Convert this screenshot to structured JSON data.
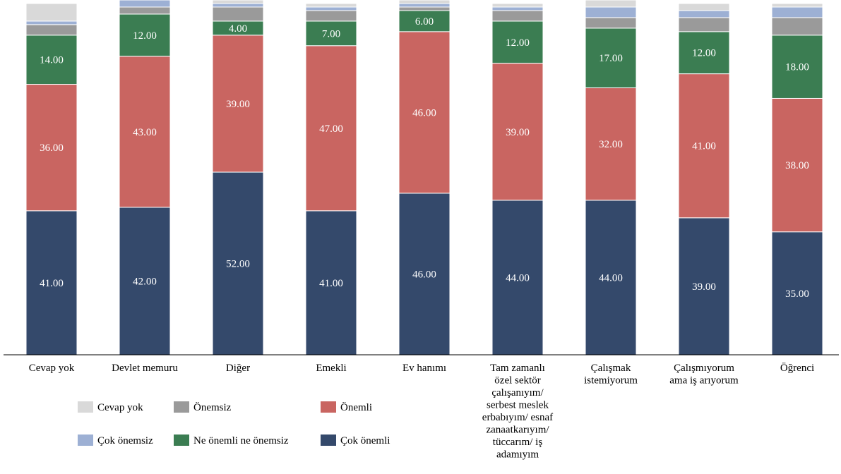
{
  "chart_data": {
    "type": "bar",
    "stacked": true,
    "ylim": [
      0,
      100
    ],
    "grid": false,
    "legend_position": "bottom-left",
    "categories": [
      [
        "Cevap yok"
      ],
      [
        "Devlet memuru"
      ],
      [
        "Diğer"
      ],
      [
        "Emekli"
      ],
      [
        "Ev hanımı"
      ],
      [
        "Tam zamanlı",
        "özel sektör",
        "çalışanıyım/",
        "serbest meslek",
        "erbabıyım/ esnaf",
        "zanaatkarıyım/",
        "tüccarım/ iş",
        "adamıyım"
      ],
      [
        "Çalışmak",
        "istemiyorum"
      ],
      [
        "Çalışmıyorum",
        "ama iş arıyorum"
      ],
      [
        "Öğrenci"
      ]
    ],
    "series": [
      {
        "name": "Çok önemli",
        "color": "#34496b",
        "values": [
          41,
          42,
          52,
          41,
          46,
          44,
          44,
          39,
          35
        ],
        "labels": [
          "41.00",
          "42.00",
          "52.00",
          "41.00",
          "46.00",
          "44.00",
          "44.00",
          "39.00",
          "35.00"
        ]
      },
      {
        "name": "Önemli",
        "color": "#c96561",
        "values": [
          36,
          43,
          39,
          47,
          46,
          39,
          32,
          41,
          38
        ],
        "labels": [
          "36.00",
          "43.00",
          "39.00",
          "47.00",
          "46.00",
          "39.00",
          "32.00",
          "41.00",
          "38.00"
        ]
      },
      {
        "name": "Ne önemli ne önemsiz",
        "color": "#3b7d52",
        "values": [
          14,
          12,
          4,
          7,
          6,
          12,
          17,
          12,
          18
        ],
        "labels": [
          "14.00",
          "12.00",
          "4.00",
          "7.00",
          "6.00",
          "12.00",
          "17.00",
          "12.00",
          "18.00"
        ]
      },
      {
        "name": "Önemsiz",
        "color": "#9a9a9a",
        "values": [
          3,
          2,
          4,
          3,
          1,
          3,
          3,
          4,
          5
        ],
        "labels": []
      },
      {
        "name": "Çok önemsiz",
        "color": "#9db0d4",
        "values": [
          1,
          2,
          1,
          1,
          1,
          1,
          3,
          2,
          3
        ],
        "labels": []
      },
      {
        "name": "Cevap yok",
        "color": "#d9d9d9",
        "values": [
          5,
          0,
          1,
          1,
          1,
          1,
          2,
          2,
          1
        ],
        "labels": []
      }
    ],
    "legend": [
      {
        "series": "Cevap yok"
      },
      {
        "series": "Önemsiz"
      },
      {
        "series": "Önemli"
      },
      {
        "series": "Çok önemsiz"
      },
      {
        "series": "Ne önemli ne önemsiz"
      },
      {
        "series": "Çok önemli"
      }
    ]
  }
}
